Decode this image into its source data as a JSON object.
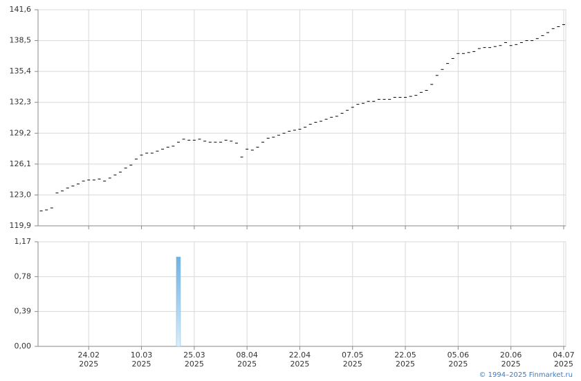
{
  "chart_data": [
    {
      "type": "dash",
      "color": "#000000",
      "values": [
        121.4,
        121.5,
        121.7,
        123.2,
        123.4,
        123.7,
        123.9,
        124.1,
        124.4,
        124.5,
        124.5,
        124.6,
        124.4,
        124.7,
        125.0,
        125.3,
        125.7,
        126.0,
        126.6,
        127.0,
        127.2,
        127.2,
        127.4,
        127.6,
        127.8,
        127.9,
        128.3,
        128.6,
        128.5,
        128.5,
        128.6,
        128.4,
        128.3,
        128.3,
        128.3,
        128.5,
        128.4,
        128.2,
        126.8,
        127.6,
        127.5,
        127.8,
        128.3,
        128.7,
        128.8,
        129.0,
        129.2,
        129.4,
        129.5,
        129.6,
        129.8,
        130.1,
        130.3,
        130.4,
        130.6,
        130.8,
        130.9,
        131.2,
        131.5,
        131.8,
        132.1,
        132.2,
        132.4,
        132.4,
        132.6,
        132.6,
        132.6,
        132.8,
        132.8,
        132.8,
        132.9,
        133.0,
        133.3,
        133.5,
        134.1,
        135.0,
        135.6,
        136.2,
        136.7,
        137.2,
        137.2,
        137.3,
        137.4,
        137.7,
        137.8,
        137.8,
        137.9,
        138.0,
        138.3,
        138.0,
        138.1,
        138.3,
        138.5,
        138.5,
        138.7,
        139.0,
        139.3,
        139.7,
        139.9,
        140.1
      ],
      "ylim": [
        119.9,
        141.6
      ],
      "yticks": [
        {
          "value": 119.9,
          "label": "119,9"
        },
        {
          "value": 123.0,
          "label": "123,0"
        },
        {
          "value": 126.1,
          "label": "126,1"
        },
        {
          "value": 129.2,
          "label": "129,2"
        },
        {
          "value": 132.3,
          "label": "132,3"
        },
        {
          "value": 135.4,
          "label": "135,4"
        },
        {
          "value": 138.5,
          "label": "138,5"
        },
        {
          "value": 141.6,
          "label": "141,6"
        }
      ],
      "grid": true
    },
    {
      "type": "bar",
      "color": "#7ab8e6",
      "categories": [
        null,
        null,
        null,
        null,
        null,
        null,
        null,
        null,
        null,
        [
          "24.02",
          "2025"
        ],
        null,
        null,
        null,
        null,
        null,
        null,
        null,
        null,
        null,
        [
          "10.03",
          "2025"
        ],
        null,
        null,
        null,
        null,
        null,
        null,
        null,
        null,
        null,
        [
          "25.03",
          "2025"
        ],
        null,
        null,
        null,
        null,
        null,
        null,
        null,
        null,
        null,
        [
          "08.04",
          "2025"
        ],
        null,
        null,
        null,
        null,
        null,
        null,
        null,
        null,
        null,
        [
          "22.04",
          "2025"
        ],
        null,
        null,
        null,
        null,
        null,
        null,
        null,
        null,
        null,
        [
          "07.05",
          "2025"
        ],
        null,
        null,
        null,
        null,
        null,
        null,
        null,
        null,
        null,
        [
          "22.05",
          "2025"
        ],
        null,
        null,
        null,
        null,
        null,
        null,
        null,
        null,
        null,
        [
          "05.06",
          "2025"
        ],
        null,
        null,
        null,
        null,
        null,
        null,
        null,
        null,
        null,
        [
          "20.06",
          "2025"
        ],
        null,
        null,
        null,
        null,
        null,
        null,
        null,
        null,
        null,
        [
          "04.07",
          "2025"
        ]
      ],
      "values": [
        null,
        null,
        null,
        null,
        null,
        null,
        null,
        null,
        null,
        null,
        null,
        null,
        null,
        null,
        null,
        null,
        null,
        null,
        null,
        null,
        null,
        null,
        null,
        null,
        null,
        null,
        1.0,
        null,
        null,
        null,
        null,
        null,
        null,
        null,
        null,
        null,
        null,
        null,
        null,
        null,
        null,
        null,
        null,
        null,
        null,
        null,
        null,
        null,
        null,
        null,
        null,
        null,
        null,
        null,
        null,
        null,
        null,
        null,
        null,
        null,
        null,
        null,
        null,
        null,
        null,
        null,
        null,
        null,
        null,
        null,
        null,
        null,
        null,
        null,
        null,
        null,
        null,
        null,
        null,
        null,
        null,
        null,
        null,
        null,
        null,
        null,
        null,
        null,
        null,
        null,
        null,
        null,
        null,
        null,
        null,
        null,
        null,
        null,
        null,
        null
      ],
      "ylim": [
        0,
        1.17
      ],
      "yticks": [
        {
          "value": 0,
          "label": "0,00"
        },
        {
          "value": 0.39,
          "label": "0,39"
        },
        {
          "value": 0.78,
          "label": "0,78"
        },
        {
          "value": 1.17,
          "label": "1,17"
        }
      ],
      "grid": true
    }
  ],
  "footer": "© 1994–2025 Finmarket.ru"
}
